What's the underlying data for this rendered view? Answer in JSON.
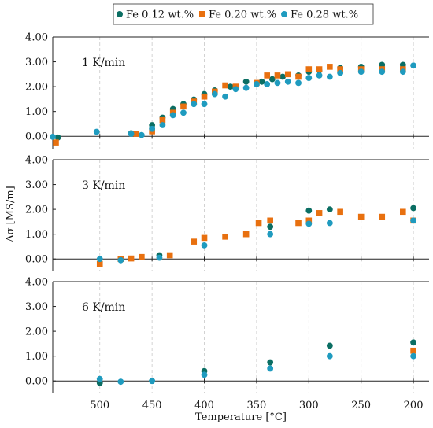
{
  "chart_data": {
    "type": "scatter",
    "xlabel": "Temperature [°C]",
    "ylabel": "Δσ [MS/m]",
    "x_reversed": true,
    "xlim": [
      545,
      185
    ],
    "ylim": [
      -0.5,
      4.0
    ],
    "x_ticks": [
      500,
      450,
      400,
      350,
      300,
      250,
      200
    ],
    "x_tick_labels": [
      "500",
      "450",
      "400",
      "350",
      "300",
      "250",
      "200"
    ],
    "y_ticks": [
      0,
      1,
      2,
      3,
      4
    ],
    "y_tick_labels": [
      "0.00",
      "1.00",
      "2.00",
      "3.00",
      "4.00"
    ],
    "grid": "vertical-dashed",
    "legend": {
      "placement": "top-center",
      "entries": [
        {
          "label": "Fe 0.12 wt.%",
          "color": "#0b6e63",
          "marker": "circle"
        },
        {
          "label": "Fe 0.20 wt.%",
          "color": "#e8700f",
          "marker": "square"
        },
        {
          "label": "Fe 0.28 wt.%",
          "color": "#1f9bbf",
          "marker": "circle"
        }
      ]
    },
    "panels": [
      {
        "label": "1 K/min",
        "series": [
          {
            "name": "Fe 0.12 wt.%",
            "points": [
              [
                540,
                -0.05
              ],
              [
                470,
                0.12
              ],
              [
                450,
                0.45
              ],
              [
                440,
                0.75
              ],
              [
                430,
                1.1
              ],
              [
                420,
                1.3
              ],
              [
                410,
                1.48
              ],
              [
                400,
                1.7
              ],
              [
                390,
                1.85
              ],
              [
                375,
                2.0
              ],
              [
                360,
                2.2
              ],
              [
                345,
                2.2
              ],
              [
                335,
                2.3
              ],
              [
                325,
                2.4
              ],
              [
                310,
                2.45
              ],
              [
                300,
                2.6
              ],
              [
                290,
                2.65
              ],
              [
                270,
                2.75
              ],
              [
                250,
                2.8
              ],
              [
                230,
                2.88
              ],
              [
                210,
                2.88
              ]
            ]
          },
          {
            "name": "Fe 0.20 wt.%",
            "points": [
              [
                542,
                -0.25
              ],
              [
                465,
                0.1
              ],
              [
                450,
                0.2
              ],
              [
                440,
                0.65
              ],
              [
                430,
                0.95
              ],
              [
                420,
                1.2
              ],
              [
                410,
                1.4
              ],
              [
                400,
                1.6
              ],
              [
                390,
                1.8
              ],
              [
                380,
                2.05
              ],
              [
                370,
                2.0
              ],
              [
                350,
                2.15
              ],
              [
                340,
                2.45
              ],
              [
                330,
                2.45
              ],
              [
                320,
                2.5
              ],
              [
                310,
                2.4
              ],
              [
                300,
                2.7
              ],
              [
                290,
                2.7
              ],
              [
                280,
                2.8
              ],
              [
                270,
                2.7
              ],
              [
                250,
                2.7
              ],
              [
                230,
                2.7
              ],
              [
                210,
                2.7
              ]
            ]
          },
          {
            "name": "Fe 0.28 wt.%",
            "points": [
              [
                545,
                -0.02
              ],
              [
                503,
                0.18
              ],
              [
                470,
                0.1
              ],
              [
                460,
                0.05
              ],
              [
                450,
                0.3
              ],
              [
                440,
                0.45
              ],
              [
                430,
                0.85
              ],
              [
                420,
                0.95
              ],
              [
                410,
                1.3
              ],
              [
                400,
                1.3
              ],
              [
                390,
                1.7
              ],
              [
                380,
                1.6
              ],
              [
                370,
                1.9
              ],
              [
                360,
                1.95
              ],
              [
                350,
                2.1
              ],
              [
                340,
                2.1
              ],
              [
                330,
                2.15
              ],
              [
                320,
                2.2
              ],
              [
                310,
                2.15
              ],
              [
                300,
                2.35
              ],
              [
                290,
                2.45
              ],
              [
                280,
                2.4
              ],
              [
                270,
                2.55
              ],
              [
                250,
                2.6
              ],
              [
                230,
                2.6
              ],
              [
                210,
                2.6
              ],
              [
                200,
                2.85
              ]
            ]
          }
        ]
      },
      {
        "label": "3 K/min",
        "series": [
          {
            "name": "Fe 0.12 wt.%",
            "points": [
              [
                443,
                0.15
              ],
              [
                337,
                1.3
              ],
              [
                300,
                1.95
              ],
              [
                280,
                2.0
              ],
              [
                200,
                2.05
              ]
            ]
          },
          {
            "name": "Fe 0.20 wt.%",
            "points": [
              [
                500,
                -0.2
              ],
              [
                480,
                0.0
              ],
              [
                470,
                0.02
              ],
              [
                460,
                0.08
              ],
              [
                433,
                0.15
              ],
              [
                410,
                0.7
              ],
              [
                400,
                0.85
              ],
              [
                380,
                0.9
              ],
              [
                360,
                1.0
              ],
              [
                348,
                1.45
              ],
              [
                337,
                1.55
              ],
              [
                310,
                1.45
              ],
              [
                300,
                1.55
              ],
              [
                290,
                1.85
              ],
              [
                270,
                1.9
              ],
              [
                250,
                1.7
              ],
              [
                230,
                1.7
              ],
              [
                210,
                1.9
              ],
              [
                200,
                1.55
              ]
            ]
          },
          {
            "name": "Fe 0.28 wt.%",
            "points": [
              [
                500,
                0.0
              ],
              [
                480,
                -0.05
              ],
              [
                443,
                0.05
              ],
              [
                400,
                0.55
              ],
              [
                337,
                1.0
              ],
              [
                300,
                1.42
              ],
              [
                280,
                1.45
              ],
              [
                200,
                1.55
              ]
            ]
          }
        ]
      },
      {
        "label": "6 K/min",
        "series": [
          {
            "name": "Fe 0.12 wt.%",
            "points": [
              [
                500,
                -0.08
              ],
              [
                450,
                0.0
              ],
              [
                400,
                0.4
              ],
              [
                337,
                0.75
              ],
              [
                280,
                1.42
              ],
              [
                200,
                1.55
              ]
            ]
          },
          {
            "name": "Fe 0.20 wt.%",
            "points": [
              [
                200,
                1.22
              ]
            ]
          },
          {
            "name": "Fe 0.28 wt.%",
            "points": [
              [
                500,
                0.08
              ],
              [
                480,
                -0.03
              ],
              [
                450,
                0.0
              ],
              [
                400,
                0.25
              ],
              [
                337,
                0.5
              ],
              [
                280,
                1.0
              ],
              [
                200,
                1.0
              ]
            ]
          }
        ]
      }
    ]
  }
}
